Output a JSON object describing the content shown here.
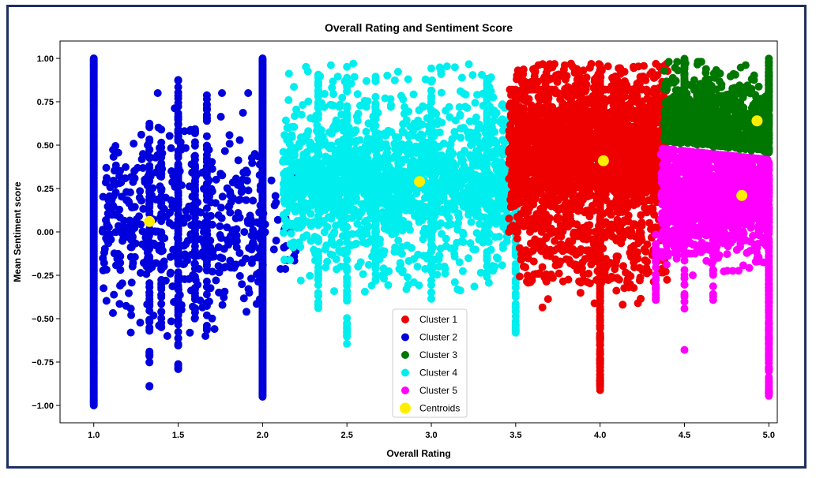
{
  "chart_data": {
    "type": "scatter",
    "title": "Overall Rating and Sentiment Score",
    "xlabel": "Overall Rating",
    "ylabel": "Mean Sentiment score",
    "xlim": [
      0.8,
      5.05
    ],
    "ylim": [
      -1.1,
      1.1
    ],
    "xticks": [
      "1.0",
      "1.5",
      "2.0",
      "2.5",
      "3.0",
      "3.5",
      "4.0",
      "4.5",
      "5.0"
    ],
    "yticks": [
      "1.00",
      "0.75",
      "0.50",
      "0.25",
      "0.00",
      "−0.25",
      "−0.50",
      "−0.75",
      "−1.00"
    ],
    "grid": false,
    "legend": "lower-center",
    "series": [
      {
        "name": "Cluster 1",
        "color": "#ee0000",
        "x_range": [
          3.5,
          4.4
        ],
        "y_range": [
          -0.95,
          0.95
        ],
        "centroid": [
          4.02,
          0.41
        ]
      },
      {
        "name": "Cluster 2",
        "color": "#0000dd",
        "x_range": [
          1.0,
          2.05
        ],
        "y_range": [
          -1.0,
          1.0
        ],
        "centroid": [
          1.33,
          0.06
        ]
      },
      {
        "name": "Cluster 3",
        "color": "#007700",
        "x_range": [
          4.35,
          5.0
        ],
        "y_range": [
          0.45,
          1.0
        ],
        "centroid": [
          4.93,
          0.64
        ]
      },
      {
        "name": "Cluster 4",
        "color": "#00eeee",
        "x_range": [
          2.1,
          3.5
        ],
        "y_range": [
          -0.65,
          1.0
        ],
        "centroid": [
          2.93,
          0.29
        ]
      },
      {
        "name": "Cluster 5",
        "color": "#ff00ff",
        "x_range": [
          4.3,
          5.0
        ],
        "y_range": [
          -0.95,
          0.45
        ],
        "centroid": [
          4.84,
          0.21
        ]
      }
    ],
    "centroids": {
      "name": "Centroids",
      "color": "#ffee00"
    }
  }
}
